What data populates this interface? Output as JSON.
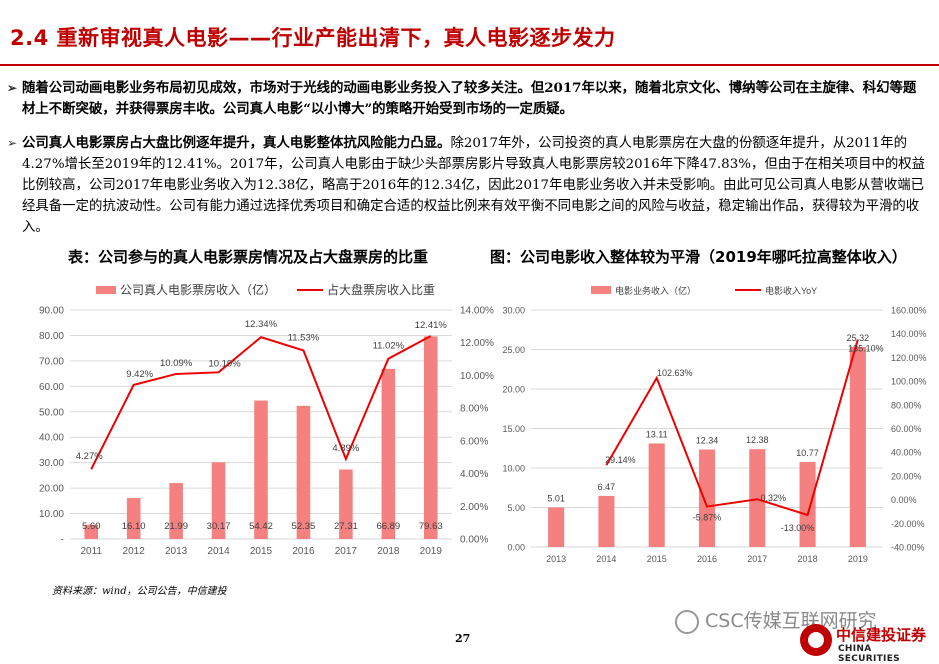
{
  "header": {
    "title": "2.4 重新审视真人电影——行业产能出清下，真人电影逐步发力"
  },
  "bullets": {
    "b1": "随着公司动画电影业务布局初见成效，市场对于光线的动画电影业务投入了较多关注。但2017年以来，随着北京文化、博纳等公司在主旋律、科幻等题材上不断突破，并获得票房丰收。公司真人电影“以小博大”的策略开始受到市场的一定质疑。",
    "b2_bold": "公司真人电影票房占大盘比例逐年提升，真人电影整体抗风险能力凸显。",
    "b2_text": "除2017年外，公司投资的真人电影票房在大盘的份额逐年提升，从2011年的4.27%增长至2019年的12.41%。2017年，公司真人电影由于缺少头部票房影片导致真人电影票房较2016年下降47.83%，但由于在相关项目中的权益比例较高，公司2017年电影业务收入为12.38亿，略高于2016年的12.34亿，因此2017年电影业务收入并未受影响。由此可见公司真人电影从营收端已经具备一定的抗波动性。公司有能力通过选择优秀项目和确定合适的权益比例来有效平衡不同电影之间的风险与收益，稳定输出作品，获得较为平滑的收入。"
  },
  "captions": {
    "left": "表：公司参与的真人电影票房情况及占大盘票房的比重",
    "right": "图：公司电影收入整体较为平滑（2019年哪吒拉高整体收入）"
  },
  "colors": {
    "bar": "#f4817f",
    "line": "#ee0000",
    "accent": "#c00000"
  },
  "chart_data": [
    {
      "type": "bar",
      "categories": [
        "2011",
        "2012",
        "2013",
        "2014",
        "2015",
        "2016",
        "2017",
        "2018",
        "2019"
      ],
      "series": [
        {
          "name": "公司真人电影票房收入（亿）",
          "type": "bar",
          "axis": "left",
          "values": [
            5.6,
            16.1,
            21.99,
            30.17,
            54.42,
            52.35,
            27.31,
            66.89,
            79.63
          ],
          "labels": [
            "5.60",
            "16.10",
            "21.99",
            "30.17",
            "54.42",
            "52.35",
            "27.31",
            "66.89",
            "79.63"
          ]
        },
        {
          "name": "占大盘票房收入比重",
          "type": "line",
          "axis": "right",
          "values": [
            4.27,
            9.42,
            10.09,
            10.19,
            12.34,
            11.53,
            4.89,
            11.02,
            12.41
          ],
          "labels": [
            "4.27%",
            "9.42%",
            "10.09%",
            "10.19%",
            "12.34%",
            "11.53%",
            "4.89%",
            "11.02%",
            "12.41%"
          ]
        }
      ],
      "ylim": [
        0,
        90
      ],
      "y_ticks": [
        "-",
        "10.00",
        "20.00",
        "30.00",
        "40.00",
        "50.00",
        "60.00",
        "70.00",
        "80.00",
        "90.00"
      ],
      "y2lim": [
        0,
        14
      ],
      "y2_ticks": [
        "0.00%",
        "2.00%",
        "4.00%",
        "6.00%",
        "8.00%",
        "10.00%",
        "12.00%",
        "14.00%"
      ],
      "grid": true,
      "legend": "top"
    },
    {
      "type": "bar",
      "categories": [
        "2013",
        "2014",
        "2015",
        "2016",
        "2017",
        "2018",
        "2019"
      ],
      "series": [
        {
          "name": "电影业务收入（亿）",
          "type": "bar",
          "axis": "left",
          "values": [
            5.01,
            6.47,
            13.11,
            12.34,
            12.38,
            10.77,
            25.32
          ],
          "labels": [
            "5.01",
            "6.47",
            "13.11",
            "12.34",
            "12.38",
            "10.77",
            "25.32"
          ]
        },
        {
          "name": "电影收入YoY",
          "type": "line",
          "axis": "right",
          "values": [
            null,
            29.14,
            102.63,
            -5.87,
            0.32,
            -13.0,
            135.1
          ],
          "labels": [
            "",
            "29.14%",
            "102.63%",
            "-5.87%",
            "0.32%",
            "-13.00%",
            "135.10%"
          ]
        }
      ],
      "ylim": [
        0,
        30
      ],
      "y_ticks": [
        "0.00",
        "5.00",
        "10.00",
        "15.00",
        "20.00",
        "25.00",
        "30.00"
      ],
      "y2lim": [
        -40,
        160
      ],
      "y2_ticks": [
        "-40.00%",
        "-20.00%",
        "0.00%",
        "20.00%",
        "40.00%",
        "60.00%",
        "80.00%",
        "100.00%",
        "120.00%",
        "140.00%",
        "160.00%"
      ],
      "grid": true,
      "legend": "top"
    }
  ],
  "footer": {
    "source": "资料来源：wind，公司公告，中信建投",
    "page": "27",
    "wechat": "CSC传媒互联网研究",
    "logo_cn": "中信建投证券",
    "logo_en": "CHINA SECURITIES"
  }
}
